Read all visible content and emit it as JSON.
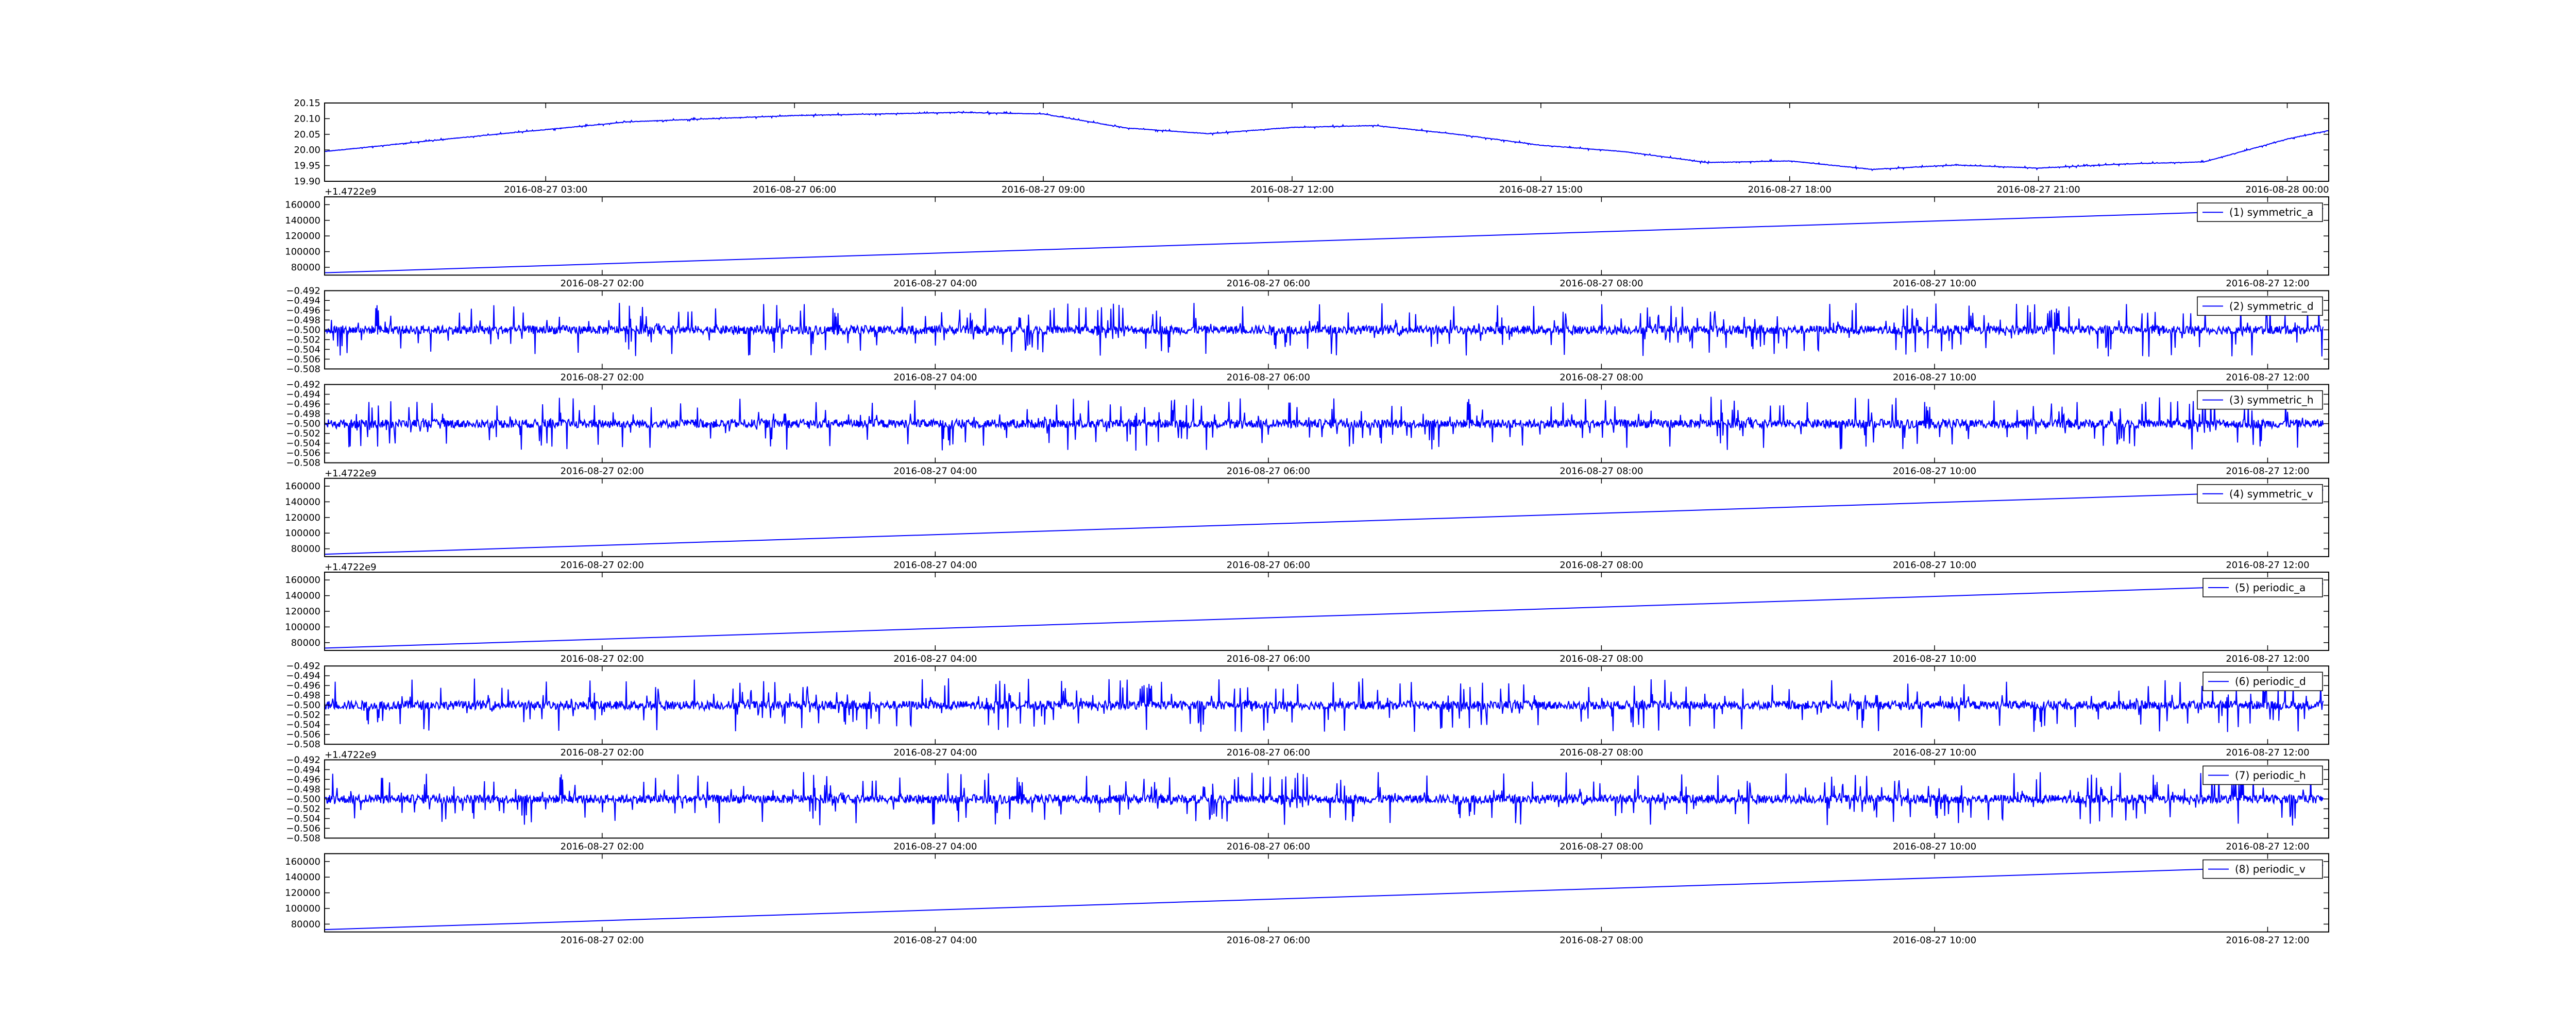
{
  "figure": {
    "line_color": "#0000ff",
    "background": "#ffffff",
    "axis_color": "#000000"
  },
  "chart_data": [
    {
      "type": "line",
      "series": [
        {
          "name": "",
          "color": "#0000ff"
        }
      ],
      "y_ticks": [
        "19.90",
        "19.95",
        "20.00",
        "20.05",
        "20.10",
        "20.15"
      ],
      "ylim": [
        19.9,
        20.15
      ],
      "x_ticks": [
        "2016-08-27 03:00",
        "2016-08-27 06:00",
        "2016-08-27 09:00",
        "2016-08-27 12:00",
        "2016-08-27 15:00",
        "2016-08-27 18:00",
        "2016-08-27 21:00",
        "2016-08-28 00:00"
      ],
      "xlim": [
        "2016-08-27 00:20",
        "2016-08-28 00:30"
      ],
      "x": [
        "2016-08-27 00:20",
        "2016-08-27 02:00",
        "2016-08-27 04:00",
        "2016-08-27 06:00",
        "2016-08-27 08:00",
        "2016-08-27 09:00",
        "2016-08-27 10:00",
        "2016-08-27 11:00",
        "2016-08-27 12:00",
        "2016-08-27 13:00",
        "2016-08-27 14:00",
        "2016-08-27 15:00",
        "2016-08-27 16:00",
        "2016-08-27 17:00",
        "2016-08-27 18:00",
        "2016-08-27 19:00",
        "2016-08-27 20:00",
        "2016-08-27 21:00",
        "2016-08-27 22:00",
        "2016-08-27 23:00",
        "2016-08-28 00:00",
        "2016-08-28 00:30"
      ],
      "y": [
        19.995,
        20.04,
        20.09,
        20.11,
        20.12,
        20.115,
        20.07,
        20.052,
        20.072,
        20.078,
        20.05,
        20.015,
        19.995,
        19.96,
        19.965,
        19.938,
        19.952,
        19.942,
        19.955,
        19.962,
        20.035,
        20.062
      ],
      "noise": 0.004
    },
    {
      "type": "line",
      "offset_text": "+1.4722e9",
      "y_ticks": [
        "80000",
        "100000",
        "120000",
        "140000",
        "160000"
      ],
      "ylim": [
        70000,
        170000
      ],
      "x_ticks": [
        "2016-08-27 02:00",
        "2016-08-27 04:00",
        "2016-08-27 06:00",
        "2016-08-27 08:00",
        "2016-08-27 10:00",
        "2016-08-27 12:00"
      ],
      "xlim": [
        "2016-08-27 00:20",
        "2016-08-27 12:22"
      ],
      "series": [
        {
          "name": "(1) symmetric_a",
          "color": "#0000ff"
        }
      ],
      "x": [
        "2016-08-27 00:20",
        "2016-08-27 12:20"
      ],
      "y": [
        73000,
        155000
      ],
      "noise": 0
    },
    {
      "type": "line",
      "y_ticks": [
        "−0.492",
        "−0.494",
        "−0.496",
        "−0.498",
        "−0.500",
        "−0.502",
        "−0.504",
        "−0.506",
        "−0.508"
      ],
      "ylim": [
        -0.508,
        -0.492
      ],
      "x_ticks": [
        "2016-08-27 02:00",
        "2016-08-27 04:00",
        "2016-08-27 06:00",
        "2016-08-27 08:00",
        "2016-08-27 10:00",
        "2016-08-27 12:00"
      ],
      "xlim": [
        "2016-08-27 00:20",
        "2016-08-27 12:22"
      ],
      "series": [
        {
          "name": "(2) symmetric_d",
          "color": "#0000ff"
        }
      ],
      "x": [
        "2016-08-27 00:20",
        "2016-08-27 12:20"
      ],
      "y": [
        -0.5,
        -0.5
      ],
      "noise": 0.005
    },
    {
      "type": "line",
      "y_ticks": [
        "−0.492",
        "−0.494",
        "−0.496",
        "−0.498",
        "−0.500",
        "−0.502",
        "−0.504",
        "−0.506",
        "−0.508"
      ],
      "ylim": [
        -0.508,
        -0.492
      ],
      "x_ticks": [
        "2016-08-27 02:00",
        "2016-08-27 04:00",
        "2016-08-27 06:00",
        "2016-08-27 08:00",
        "2016-08-27 10:00",
        "2016-08-27 12:00"
      ],
      "xlim": [
        "2016-08-27 00:20",
        "2016-08-27 12:22"
      ],
      "series": [
        {
          "name": "(3) symmetric_h",
          "color": "#0000ff"
        }
      ],
      "x": [
        "2016-08-27 00:20",
        "2016-08-27 12:20"
      ],
      "y": [
        -0.5,
        -0.5
      ],
      "noise": 0.005
    },
    {
      "type": "line",
      "offset_text": "+1.4722e9",
      "y_ticks": [
        "80000",
        "100000",
        "120000",
        "140000",
        "160000"
      ],
      "ylim": [
        70000,
        170000
      ],
      "x_ticks": [
        "2016-08-27 02:00",
        "2016-08-27 04:00",
        "2016-08-27 06:00",
        "2016-08-27 08:00",
        "2016-08-27 10:00",
        "2016-08-27 12:00"
      ],
      "xlim": [
        "2016-08-27 00:20",
        "2016-08-27 12:22"
      ],
      "series": [
        {
          "name": "(4) symmetric_v",
          "color": "#0000ff"
        }
      ],
      "x": [
        "2016-08-27 00:20",
        "2016-08-27 12:20"
      ],
      "y": [
        73000,
        155000
      ],
      "noise": 0
    },
    {
      "type": "line",
      "offset_text": "+1.4722e9",
      "y_ticks": [
        "80000",
        "100000",
        "120000",
        "140000",
        "160000"
      ],
      "ylim": [
        70000,
        170000
      ],
      "x_ticks": [
        "2016-08-27 02:00",
        "2016-08-27 04:00",
        "2016-08-27 06:00",
        "2016-08-27 08:00",
        "2016-08-27 10:00",
        "2016-08-27 12:00"
      ],
      "xlim": [
        "2016-08-27 00:20",
        "2016-08-27 12:22"
      ],
      "series": [
        {
          "name": "(5) periodic_a",
          "color": "#0000ff"
        }
      ],
      "x": [
        "2016-08-27 00:20",
        "2016-08-27 12:20"
      ],
      "y": [
        73000,
        155000
      ],
      "noise": 0
    },
    {
      "type": "line",
      "y_ticks": [
        "−0.492",
        "−0.494",
        "−0.496",
        "−0.498",
        "−0.500",
        "−0.502",
        "−0.504",
        "−0.506",
        "−0.508"
      ],
      "ylim": [
        -0.508,
        -0.492
      ],
      "x_ticks": [
        "2016-08-27 02:00",
        "2016-08-27 04:00",
        "2016-08-27 06:00",
        "2016-08-27 08:00",
        "2016-08-27 10:00",
        "2016-08-27 12:00"
      ],
      "xlim": [
        "2016-08-27 00:20",
        "2016-08-27 12:22"
      ],
      "series": [
        {
          "name": "(6) periodic_d",
          "color": "#0000ff"
        }
      ],
      "x": [
        "2016-08-27 00:20",
        "2016-08-27 12:20"
      ],
      "y": [
        -0.5,
        -0.5
      ],
      "noise": 0.005
    },
    {
      "type": "line",
      "offset_text": "+1.4722e9",
      "y_ticks": [
        "−0.492",
        "−0.494",
        "−0.496",
        "−0.498",
        "−0.500",
        "−0.502",
        "−0.504",
        "−0.506",
        "−0.508"
      ],
      "ylim": [
        -0.508,
        -0.492
      ],
      "x_ticks": [
        "2016-08-27 02:00",
        "2016-08-27 04:00",
        "2016-08-27 06:00",
        "2016-08-27 08:00",
        "2016-08-27 10:00",
        "2016-08-27 12:00"
      ],
      "xlim": [
        "2016-08-27 00:20",
        "2016-08-27 12:22"
      ],
      "series": [
        {
          "name": "(7) periodic_h",
          "color": "#0000ff"
        }
      ],
      "x": [
        "2016-08-27 00:20",
        "2016-08-27 12:20"
      ],
      "y": [
        -0.5,
        -0.5
      ],
      "noise": 0.005
    },
    {
      "type": "line",
      "y_ticks": [
        "80000",
        "100000",
        "120000",
        "140000",
        "160000"
      ],
      "ylim": [
        70000,
        170000
      ],
      "x_ticks": [
        "2016-08-27 02:00",
        "2016-08-27 04:00",
        "2016-08-27 06:00",
        "2016-08-27 08:00",
        "2016-08-27 10:00",
        "2016-08-27 12:00"
      ],
      "xlim": [
        "2016-08-27 00:20",
        "2016-08-27 12:22"
      ],
      "series": [
        {
          "name": "(8) periodic_v",
          "color": "#0000ff"
        }
      ],
      "x": [
        "2016-08-27 00:20",
        "2016-08-27 12:20"
      ],
      "y": [
        73000,
        155000
      ],
      "noise": 0
    }
  ]
}
